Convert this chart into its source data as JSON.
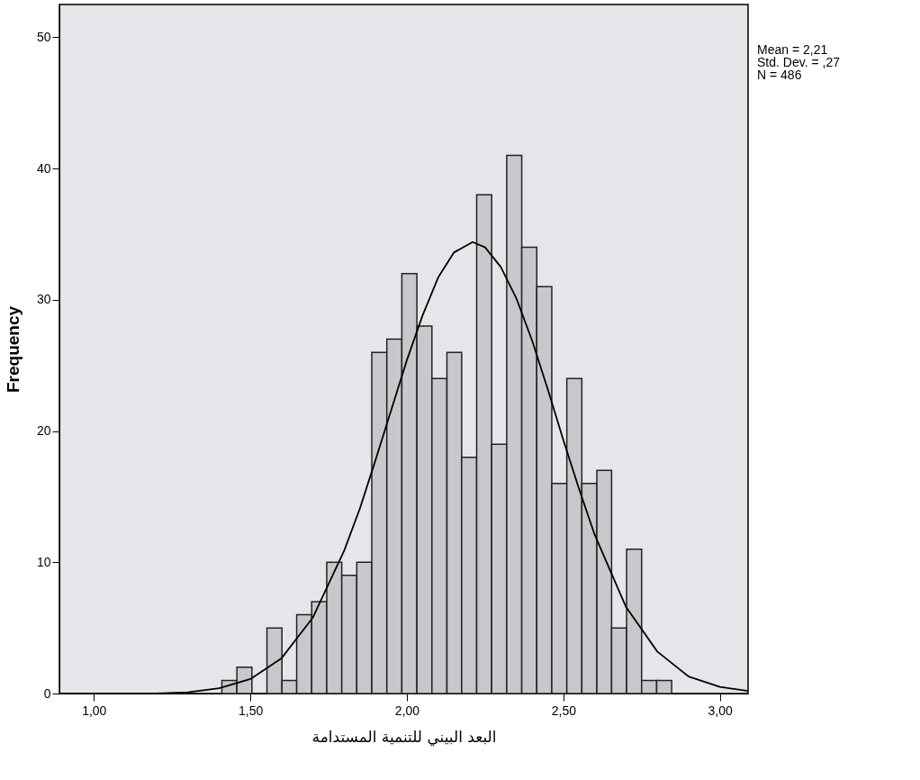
{
  "chart_data": {
    "type": "histogram",
    "xlabel": "البعد البيني للتنمية المستدامة",
    "ylabel": "Frequency",
    "bins": [
      1.409,
      1.457,
      1.505,
      1.553,
      1.601,
      1.648,
      1.696,
      1.744,
      1.792,
      1.84,
      1.888,
      1.936,
      1.984,
      2.032,
      2.08,
      2.128,
      2.175,
      2.223,
      2.271,
      2.319,
      2.367,
      2.415,
      2.463,
      2.511,
      2.559,
      2.607,
      2.654,
      2.702,
      2.75,
      2.798,
      2.846
    ],
    "values": [
      1,
      2,
      0,
      5,
      1,
      6,
      7,
      10,
      9,
      10,
      26,
      27,
      32,
      28,
      24,
      26,
      18,
      38,
      19,
      41,
      34,
      31,
      16,
      24,
      16,
      17,
      5,
      11,
      1,
      1
    ],
    "color": "#c8c8cc",
    "series": [
      {
        "type": "line",
        "color": "#000000",
        "x": [
          0.89,
          1.0,
          1.1,
          1.2,
          1.3,
          1.4,
          1.5,
          1.6,
          1.7,
          1.8,
          1.85,
          1.9,
          1.95,
          2.0,
          2.05,
          2.1,
          2.15,
          2.21,
          2.25,
          2.3,
          2.35,
          2.4,
          2.45,
          2.5,
          2.55,
          2.6,
          2.7,
          2.8,
          2.9,
          3.0,
          3.09
        ],
        "values": [
          0.0,
          0.0,
          0.0,
          0.0,
          0.1,
          0.4,
          1.1,
          2.7,
          5.8,
          10.9,
          14.1,
          17.8,
          21.6,
          25.4,
          28.8,
          31.7,
          33.6,
          34.4,
          34.0,
          32.5,
          30.1,
          26.9,
          23.2,
          19.3,
          15.6,
          12.1,
          6.6,
          3.2,
          1.3,
          0.5,
          0.2
        ]
      }
    ],
    "xlim": [
      0.89,
      3.09
    ],
    "ylim": [
      0,
      52.5
    ],
    "xticks": [
      {
        "value": 1,
        "label": "1,00"
      },
      {
        "value": 1.5,
        "label": "1,50"
      },
      {
        "value": 2,
        "label": "2,00"
      },
      {
        "value": 2.5,
        "label": "2,50"
      },
      {
        "value": 3,
        "label": "3,00"
      }
    ],
    "yticks": [
      0,
      10,
      20,
      30,
      40,
      50
    ],
    "grid": false,
    "annotations": [
      "Mean = 2,21",
      "Std. Dev. = ,27",
      "N = 486"
    ]
  }
}
